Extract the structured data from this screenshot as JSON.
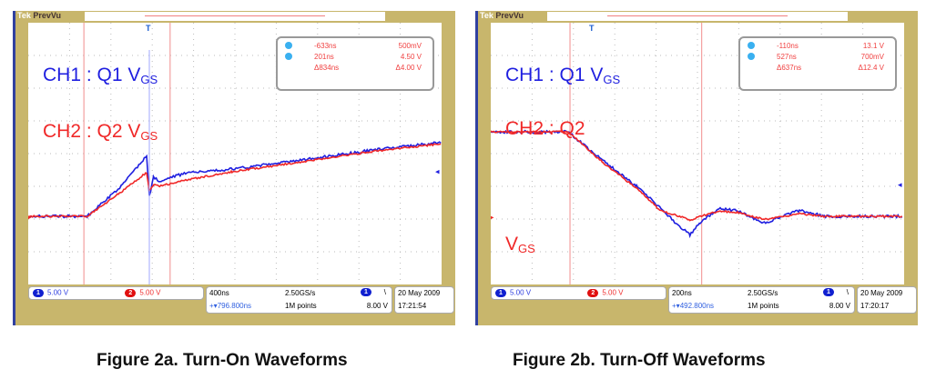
{
  "colors": {
    "ch1": "#1f1fe0",
    "ch2": "#f02828",
    "cursor": "#f4a0a0",
    "frame": "#c8b66c"
  },
  "scopes": [
    {
      "brand": "Tek",
      "mode": "PrevVu",
      "label1": "CH1 : Q1 V",
      "label1_sub": "GS",
      "label2": "CH2 : Q2 V",
      "label2_sub": "GS",
      "label2b": "",
      "label2b_sub": "",
      "cursor_a": {
        "time": "-633ns",
        "volt": "500mV"
      },
      "cursor_b": {
        "time": "201ns",
        "volt": "4.50 V"
      },
      "delta": {
        "time": "Δ834ns",
        "volt": "Δ4.00 V"
      },
      "ch1_scale": "5.00 V",
      "ch2_scale": "5.00 V",
      "timebase": "400ns",
      "sample_rate": "2.50GS/s",
      "position": "+▾796.800ns",
      "record": "1M points",
      "trigger_level": "8.00 V",
      "date": "20 May 2009",
      "time": "17:21:54",
      "caption": "Figure 2a. Turn-On Waveforms"
    },
    {
      "brand": "Tek",
      "mode": "PrevVu",
      "label1": "CH1 : Q1 V",
      "label1_sub": "GS",
      "label2": "CH2 : Q2",
      "label2_sub": "",
      "label2b": "V",
      "label2b_sub": "GS",
      "cursor_a": {
        "time": "-110ns",
        "volt": "13.1 V"
      },
      "cursor_b": {
        "time": "527ns",
        "volt": "700mV"
      },
      "delta": {
        "time": "Δ637ns",
        "volt": "Δ12.4 V"
      },
      "ch1_scale": "5.00 V",
      "ch2_scale": "5.00 V",
      "timebase": "200ns",
      "sample_rate": "2.50GS/s",
      "position": "+▾492.800ns",
      "record": "1M points",
      "trigger_level": "8.00 V",
      "date": "20 May 2009",
      "time": "17:20:17",
      "caption": "Figure 2b. Turn-Off Waveforms"
    }
  ],
  "chart_data": [
    {
      "type": "line",
      "title": "Figure 2a. Turn-On Waveforms",
      "x_unit": "ns",
      "y_unit": "V",
      "ns_per_div": 400,
      "v_per_div": 5,
      "grid": true,
      "cursors_ns": [
        -633,
        201
      ],
      "series": [
        {
          "name": "CH1 : Q1 VGS",
          "x": [
            -1170,
            -600,
            -300,
            -26,
            0,
            40,
            100,
            370,
            800,
            1500,
            2200,
            2830
          ],
          "y": [
            0,
            0,
            4.2,
            9.2,
            3,
            6,
            5.4,
            6.7,
            7.2,
            8.7,
            10.2,
            11.3
          ]
        },
        {
          "name": "CH2 : Q2 VGS",
          "x": [
            -1170,
            -600,
            -300,
            -26,
            0,
            40,
            100,
            370,
            800,
            1500,
            2200,
            2830
          ],
          "y": [
            0,
            0,
            3.4,
            6.7,
            4,
            4.8,
            4.6,
            5.6,
            6.8,
            8.4,
            10,
            11.1
          ]
        }
      ]
    },
    {
      "type": "line",
      "title": "Figure 2b. Turn-Off Waveforms",
      "x_unit": "ns",
      "y_unit": "V",
      "ns_per_div": 200,
      "v_per_div": 5,
      "grid": true,
      "cursors_ns": [
        -110,
        527
      ],
      "series": [
        {
          "name": "CH1 : Q1 VGS",
          "x": [
            -500,
            -119,
            50,
            212,
            330,
            420,
            470,
            520,
            610,
            700,
            830,
            1000,
            1120,
            1500
          ],
          "y": [
            12.9,
            12.9,
            8.5,
            4.6,
            1.2,
            -1.6,
            -2.8,
            -1,
            1.2,
            0.8,
            -1,
            0.9,
            0,
            0
          ]
        },
        {
          "name": "CH2 : Q2 VGS",
          "x": [
            -500,
            -119,
            50,
            212,
            330,
            420,
            470,
            520,
            610,
            700,
            830,
            1000,
            1120,
            1500
          ],
          "y": [
            12.9,
            12.9,
            8.2,
            4.3,
            0.8,
            0,
            -0.6,
            0,
            0.8,
            0.6,
            -0.5,
            0.4,
            0,
            0
          ]
        }
      ]
    }
  ]
}
